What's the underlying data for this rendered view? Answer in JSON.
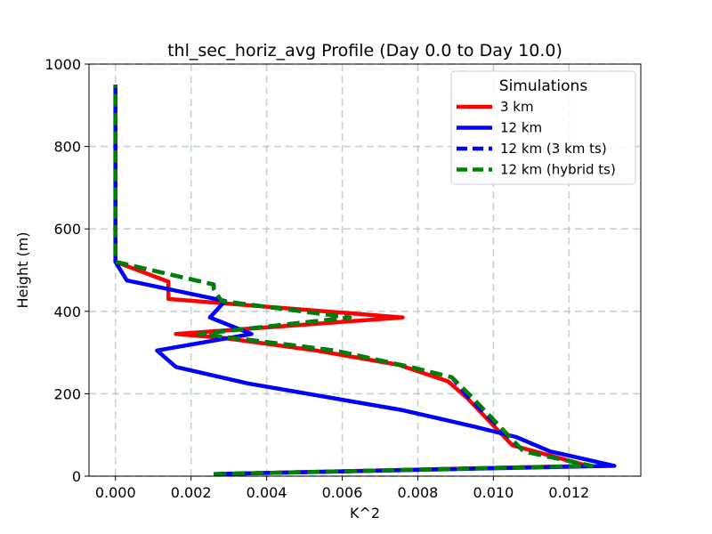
{
  "chart_data": {
    "type": "line",
    "title": "thl_sec_horiz_avg Profile (Day 0.0 to Day 10.0)",
    "xlabel": "K^2",
    "ylabel": "Height (m)",
    "xlim": [
      -0.0007,
      0.0139
    ],
    "ylim": [
      0,
      1000
    ],
    "xticks": [
      0.0,
      0.002,
      0.004,
      0.006,
      0.008,
      0.01,
      0.012
    ],
    "xtick_labels": [
      "0.000",
      "0.002",
      "0.004",
      "0.006",
      "0.008",
      "0.010",
      "0.012"
    ],
    "yticks": [
      0,
      200,
      400,
      600,
      800,
      1000
    ],
    "ytick_labels": [
      "0",
      "200",
      "400",
      "600",
      "800",
      "1000"
    ],
    "grid": true,
    "legend": {
      "title": "Simulations",
      "position": "top-right"
    },
    "series": [
      {
        "name": "3 km",
        "color": "#ff0000",
        "dash": "solid",
        "x": [
          0.0026,
          0.0125,
          0.0105,
          0.0093,
          0.0088,
          0.0075,
          0.0053,
          0.0029,
          0.0016,
          0.0076,
          0.0014,
          0.0014,
          0.0014,
          0.0,
          0.0,
          0.0,
          0.0
        ],
        "y": [
          5,
          25,
          75,
          190,
          230,
          270,
          305,
          335,
          345,
          385,
          430,
          450,
          472,
          520,
          600,
          800,
          950
        ]
      },
      {
        "name": "12 km",
        "color": "#0000ff",
        "dash": "solid",
        "x": [
          0.0026,
          0.0132,
          0.0115,
          0.0106,
          0.0095,
          0.0076,
          0.0035,
          0.0016,
          0.0011,
          0.0036,
          0.0025,
          0.0029,
          0.0003,
          0.0,
          0.0,
          0.0,
          0.0
        ],
        "y": [
          5,
          25,
          60,
          95,
          120,
          160,
          225,
          265,
          305,
          345,
          385,
          425,
          475,
          520,
          600,
          800,
          950
        ]
      },
      {
        "name": "12 km (3 km ts)",
        "color": "#0000ff",
        "dash": "dashed",
        "x": [
          0.0026,
          0.0126,
          0.0108,
          0.0093,
          0.0089,
          0.0078,
          0.0058,
          0.0036,
          0.0022,
          0.0062,
          0.0028,
          0.0026,
          0.0026,
          0.0,
          0.0,
          0.0,
          0.0
        ],
        "y": [
          5,
          25,
          60,
          195,
          240,
          265,
          305,
          330,
          345,
          385,
          425,
          455,
          465,
          520,
          600,
          800,
          950
        ]
      },
      {
        "name": "12 km (hybrid ts)",
        "color": "#008000",
        "dash": "dashed",
        "x": [
          0.0026,
          0.0126,
          0.0108,
          0.0094,
          0.0089,
          0.0078,
          0.0058,
          0.0036,
          0.0022,
          0.0062,
          0.0028,
          0.0026,
          0.0026,
          0.0,
          0.0,
          0.0,
          0.0
        ],
        "y": [
          5,
          25,
          60,
          195,
          240,
          265,
          305,
          330,
          345,
          385,
          425,
          455,
          465,
          520,
          600,
          800,
          950
        ]
      }
    ]
  }
}
